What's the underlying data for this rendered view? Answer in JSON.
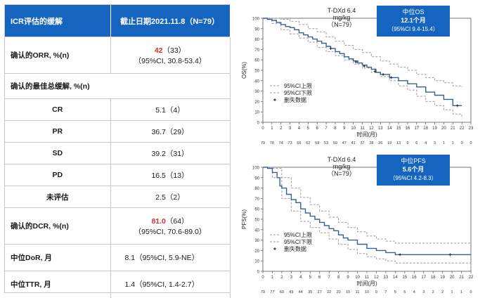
{
  "table": {
    "header": {
      "col1": "ICR评估的缓解",
      "col2": "截止日期2021.11.8（N=79）"
    },
    "orr": {
      "label": "确认的ORR, %(n)",
      "value": "42",
      "count": "（33）",
      "ci": "（95%CI, 30.8-53.4）"
    },
    "best_response_label": "确认的最佳总缓解, %(n)",
    "rows": [
      {
        "label": "CR",
        "value": "5.1（4）"
      },
      {
        "label": "PR",
        "value": "36.7（29）"
      },
      {
        "label": "SD",
        "value": "39.2（31）"
      },
      {
        "label": "PD",
        "value": "16.5（13）"
      },
      {
        "label": "未评估",
        "value": "2.5（2）"
      }
    ],
    "dcr": {
      "label": "确认的DCR, %(n)",
      "value": "81.0",
      "count": "（64）",
      "ci": "（95%CI, 70.6-89.0）"
    },
    "dor": {
      "label": "中位DoR, 月",
      "value": "8.1（95%CI, 5.9-NE）"
    },
    "ttr": {
      "label": "中位TTR, 月",
      "value": "1.4（95%CI, 1.4-2.7）"
    }
  },
  "colors": {
    "header": "#1565c0",
    "curve": "#3a5f95",
    "ci": "#9e9e9e",
    "red": "#d32f2f"
  },
  "chart_data": [
    {
      "type": "line",
      "chart": "os",
      "ylabel": "OS(%)",
      "xlabel": "时间(月)",
      "title_lines": [
        "T-DXd 6.4",
        "mg/kg",
        "（N=79）"
      ],
      "box": {
        "line1": "中位OS",
        "line2": "12.1个月",
        "line3": "（95%CI 9.4-15.4）"
      },
      "legend": [
        "95%CI上限",
        "95%CI下限",
        "删失数据"
      ],
      "xlim": [
        0,
        23
      ],
      "ylim": [
        0,
        100
      ],
      "x_ticks": [
        0,
        1,
        2,
        3,
        4,
        5,
        6,
        7,
        8,
        9,
        10,
        11,
        12,
        13,
        14,
        15,
        16,
        17,
        18,
        19,
        20,
        21,
        22,
        23
      ],
      "y_ticks": [
        0,
        10,
        20,
        30,
        40,
        50,
        60,
        70,
        80,
        90,
        100
      ],
      "at_risk": [
        "79",
        "78",
        "74",
        "73",
        "66",
        "62",
        "59",
        "53",
        "50",
        "47",
        "41",
        "37",
        "28",
        "26",
        "19",
        "13",
        "9",
        "6",
        "4",
        "3",
        "1",
        "1",
        "0",
        "0"
      ],
      "series": [
        {
          "name": "OS",
          "x": [
            0,
            0.5,
            1,
            1.5,
            2,
            2.5,
            3,
            3.5,
            4,
            4.5,
            5,
            5.5,
            6,
            6.5,
            7,
            7.5,
            8,
            8.5,
            9,
            9.5,
            10,
            10.5,
            11,
            11.5,
            12,
            12.5,
            13,
            14,
            15,
            16,
            17,
            18,
            19,
            20,
            21,
            22
          ],
          "y": [
            100,
            99,
            98,
            96,
            94,
            92,
            91,
            89,
            86,
            84,
            82,
            80,
            78,
            76,
            73,
            71,
            68,
            66,
            63,
            61,
            59,
            57,
            55,
            53,
            51,
            48,
            46,
            43,
            40,
            37,
            34,
            29,
            26,
            22,
            16,
            16
          ]
        },
        {
          "name": "95%CI上限",
          "x": [
            0,
            1,
            2,
            3,
            4,
            5,
            6,
            7,
            8,
            9,
            10,
            11,
            12,
            13,
            14,
            15,
            16,
            17,
            18,
            19,
            20,
            21,
            22
          ],
          "y": [
            100,
            100,
            99,
            97,
            94,
            90,
            87,
            82,
            78,
            74,
            70,
            67,
            63,
            59,
            56,
            53,
            50,
            46,
            43,
            40,
            38,
            35,
            34
          ]
        },
        {
          "name": "95%CI下限",
          "x": [
            0,
            1,
            2,
            3,
            4,
            5,
            6,
            7,
            8,
            9,
            10,
            11,
            12,
            13,
            14,
            15,
            16,
            17,
            18,
            19,
            20,
            21,
            22
          ],
          "y": [
            100,
            95,
            89,
            85,
            81,
            77,
            72,
            68,
            64,
            60,
            56,
            52,
            48,
            44,
            40,
            35,
            31,
            25,
            20,
            16,
            12,
            8,
            5
          ]
        }
      ],
      "censored": [
        [
          7.5,
          71
        ],
        [
          10.3,
          58
        ],
        [
          11.2,
          54
        ],
        [
          12.4,
          49
        ],
        [
          13.3,
          46
        ],
        [
          14.2,
          43
        ],
        [
          21.5,
          16
        ]
      ]
    },
    {
      "type": "line",
      "chart": "pfs",
      "ylabel": "PFS(%)",
      "xlabel": "时间(月)",
      "title_lines": [
        "T-DXd 6.4",
        "mg/kg",
        "（N=79）"
      ],
      "box": {
        "line1": "中位PFS",
        "line2": "5.6个月",
        "line3": "（95%CI 4.2-8.3）"
      },
      "legend": [
        "95%CI上限",
        "95%CI下限",
        "删失数据"
      ],
      "xlim": [
        0,
        22
      ],
      "ylim": [
        0,
        100
      ],
      "x_ticks": [
        0,
        1,
        2,
        3,
        4,
        5,
        6,
        7,
        8,
        9,
        10,
        11,
        12,
        13,
        14,
        15,
        16,
        17,
        18,
        19,
        20,
        21,
        22
      ],
      "y_ticks": [
        0,
        10,
        20,
        30,
        40,
        50,
        60,
        70,
        80,
        90,
        100
      ],
      "at_risk": [
        "79",
        "77",
        "60",
        "49",
        "44",
        "35",
        "27",
        "22",
        "20",
        "15",
        "11",
        "10",
        "9",
        "7",
        "5",
        "5",
        "4",
        "3",
        "2",
        "2",
        "1",
        "1",
        "0"
      ],
      "series": [
        {
          "name": "PFS",
          "x": [
            0,
            0.5,
            1,
            1.5,
            1.8,
            2,
            2.5,
            3,
            3.5,
            4,
            4.5,
            5,
            5.5,
            6,
            6.5,
            7,
            7.5,
            8,
            8.5,
            9,
            10,
            11,
            12,
            13,
            14,
            22
          ],
          "y": [
            100,
            99,
            95,
            90,
            82,
            80,
            74,
            69,
            66,
            60,
            56,
            53,
            50,
            47,
            44,
            41,
            39,
            35,
            32,
            30,
            26,
            22,
            20,
            18,
            16,
            16
          ]
        },
        {
          "name": "95%CI上限",
          "x": [
            0,
            1,
            2,
            3,
            4,
            5,
            6,
            7,
            8,
            9,
            10,
            11,
            12,
            13,
            14,
            16,
            18,
            20,
            22
          ],
          "y": [
            100,
            99,
            90,
            80,
            71,
            64,
            58,
            52,
            47,
            42,
            38,
            34,
            31,
            29,
            27,
            27,
            27,
            27,
            27
          ]
        },
        {
          "name": "95%CI下限",
          "x": [
            0,
            1,
            2,
            3,
            4,
            5,
            6,
            7,
            8,
            9,
            10,
            11,
            12,
            13,
            14,
            16,
            18,
            20,
            22
          ],
          "y": [
            100,
            90,
            70,
            58,
            48,
            42,
            37,
            31,
            26,
            21,
            17,
            14,
            12,
            10,
            8,
            8,
            8,
            8,
            2
          ]
        }
      ],
      "censored": [
        [
          14.5,
          16
        ],
        [
          19.8,
          16
        ]
      ]
    }
  ]
}
